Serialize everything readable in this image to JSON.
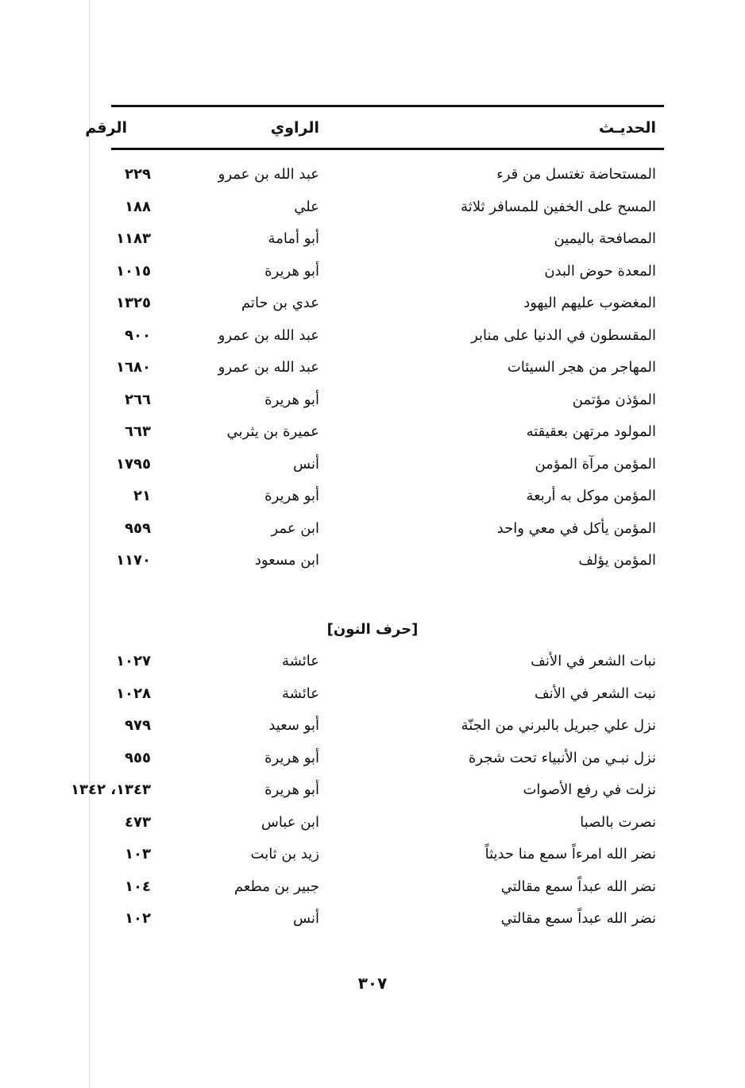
{
  "header": {
    "hadith": "الحديـث",
    "narrator": "الراوي",
    "number": "الرقم"
  },
  "section1": [
    {
      "hadith": "المستحاضة تغتسل من قرء",
      "narrator": "عبد الله بن عمرو",
      "number": "٢٢٩"
    },
    {
      "hadith": "المسح على الخفين للمسافر ثلاثة",
      "narrator": "علي",
      "number": "١٨٨"
    },
    {
      "hadith": "المصافحة باليمين",
      "narrator": "أبو أمامة",
      "number": "١١٨٣"
    },
    {
      "hadith": "المعدة حوض البدن",
      "narrator": "أبو هريرة",
      "number": "١٠١٥"
    },
    {
      "hadith": "المغضوب عليهم اليهود",
      "narrator": "عدي بن حاتم",
      "number": "١٣٢٥"
    },
    {
      "hadith": "المقسطون في الدنيا على منابر",
      "narrator": "عبد الله بن عمرو",
      "number": "٩٠٠"
    },
    {
      "hadith": "المهاجر من هجر السيئات",
      "narrator": "عبد الله بن عمرو",
      "number": "١٦٨٠"
    },
    {
      "hadith": "المؤذن مؤتمن",
      "narrator": "أبو هريرة",
      "number": "٢٦٦"
    },
    {
      "hadith": "المولود مرتهن بعقيقته",
      "narrator": "عميرة بن يثربي",
      "number": "٦٦٣"
    },
    {
      "hadith": "المؤمن مرآة المؤمن",
      "narrator": "أنس",
      "number": "١٧٩٥"
    },
    {
      "hadith": "المؤمن موكل به أربعة",
      "narrator": "أبو هريرة",
      "number": "٢١"
    },
    {
      "hadith": "المؤمن يأكل في معي واحد",
      "narrator": "ابن عمر",
      "number": "٩٥٩"
    },
    {
      "hadith": "المؤمن يؤلف",
      "narrator": "ابن مسعود",
      "number": "١١٧٠"
    }
  ],
  "section_title": "[حرف النون]",
  "section2": [
    {
      "hadith": "نبات الشعر في الأنف",
      "narrator": "عائشة",
      "number": "١٠٢٧"
    },
    {
      "hadith": "نبت الشعر في الأنف",
      "narrator": "عائشة",
      "number": "١٠٢٨"
    },
    {
      "hadith": "نزل علي جبريل بالبرني من الجنّة",
      "narrator": "أبو سعيد",
      "number": "٩٧٩"
    },
    {
      "hadith": "نزل نبـي من الأنبياء تحت شجرة",
      "narrator": "أبو هريرة",
      "number": "٩٥٥"
    },
    {
      "hadith": "نزلت في رفع الأصوات",
      "narrator": "أبو هريرة",
      "number": "١٣٤٣، ١٣٤٢"
    },
    {
      "hadith": "نصرت بالصبا",
      "narrator": "ابن عباس",
      "number": "٤٧٣"
    },
    {
      "hadith": "نضر الله امرءاً سمع منا حديثاً",
      "narrator": "زيد بن ثابت",
      "number": "١٠٣"
    },
    {
      "hadith": "نضر الله عبداً سمع مقالتي",
      "narrator": "جبير بن مطعم",
      "number": "١٠٤"
    },
    {
      "hadith": "نضر الله عبداً سمع مقالتي",
      "narrator": "أنس",
      "number": "١٠٢"
    }
  ],
  "page_number": "٣٠٧"
}
